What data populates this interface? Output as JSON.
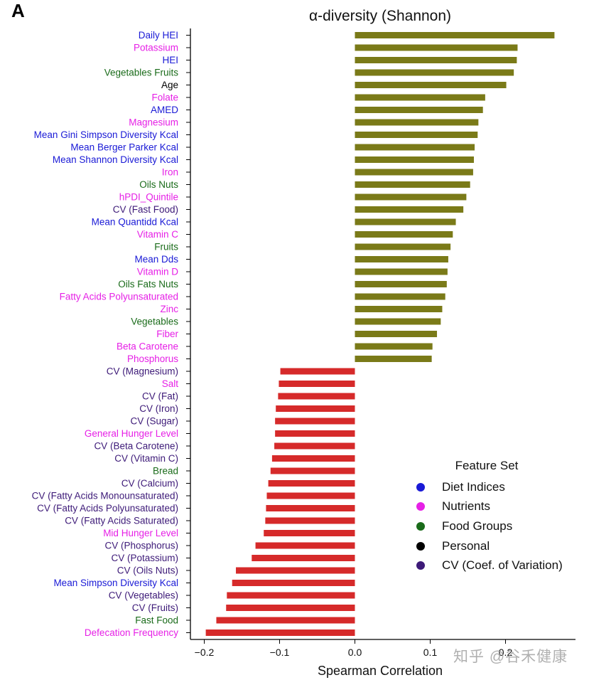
{
  "panel_label": "A",
  "watermark": "知乎 @谷禾健康",
  "legend": {
    "title": "Feature Set",
    "items": [
      {
        "label": "Diet Indices",
        "color": "#1a1ad6"
      },
      {
        "label": "Nutrients",
        "color": "#e620e6"
      },
      {
        "label": "Food Groups",
        "color": "#1a6b1a"
      },
      {
        "label": "Personal",
        "color": "#000000"
      },
      {
        "label": "CV (Coef. of Variation)",
        "color": "#3d1a78"
      }
    ]
  },
  "chart_data": {
    "type": "bar",
    "orientation": "horizontal",
    "title": "α-diversity (Shannon)",
    "xlabel": "Spearman Correlation",
    "ylabel": "",
    "xlim": [
      -0.22,
      0.37
    ],
    "xticks": [
      "−0.2",
      "−0.1",
      "0.0",
      "0.1",
      "0.2"
    ],
    "xtick_values": [
      -0.2,
      -0.1,
      0.0,
      0.1,
      0.2
    ],
    "grid": false,
    "legend_position": "bottom-right",
    "colors": {
      "positive_bar": "#7a7a18",
      "negative_bar": "#d62a2a",
      "Diet Indices": "#1a1ad6",
      "Nutrients": "#e620e6",
      "Food Groups": "#1a6b1a",
      "Personal": "#000000",
      "CV": "#3d1a78"
    },
    "bars": [
      {
        "label": "Daily HEI",
        "value": 0.265,
        "group": "Diet Indices"
      },
      {
        "label": "Potassium",
        "value": 0.216,
        "group": "Nutrients"
      },
      {
        "label": "HEI",
        "value": 0.215,
        "group": "Diet Indices"
      },
      {
        "label": "Vegetables Fruits",
        "value": 0.211,
        "group": "Food Groups"
      },
      {
        "label": "Age",
        "value": 0.201,
        "group": "Personal"
      },
      {
        "label": "Folate",
        "value": 0.173,
        "group": "Nutrients"
      },
      {
        "label": "AMED",
        "value": 0.17,
        "group": "Diet Indices"
      },
      {
        "label": "Magnesium",
        "value": 0.164,
        "group": "Nutrients"
      },
      {
        "label": "Mean Gini Simpson Diversity Kcal",
        "value": 0.163,
        "group": "Diet Indices"
      },
      {
        "label": "Mean Berger Parker Kcal",
        "value": 0.159,
        "group": "Diet Indices"
      },
      {
        "label": "Mean Shannon Diversity Kcal",
        "value": 0.158,
        "group": "Diet Indices"
      },
      {
        "label": "Iron",
        "value": 0.157,
        "group": "Nutrients"
      },
      {
        "label": "Oils Nuts",
        "value": 0.153,
        "group": "Food Groups"
      },
      {
        "label": "hPDI_Quintile",
        "value": 0.148,
        "group": "Nutrients"
      },
      {
        "label": "CV (Fast Food)",
        "value": 0.144,
        "group": "CV"
      },
      {
        "label": "Mean Quantidd Kcal",
        "value": 0.134,
        "group": "Diet Indices"
      },
      {
        "label": "Vitamin C",
        "value": 0.13,
        "group": "Nutrients"
      },
      {
        "label": "Fruits",
        "value": 0.127,
        "group": "Food Groups"
      },
      {
        "label": "Mean Dds",
        "value": 0.124,
        "group": "Diet Indices"
      },
      {
        "label": "Vitamin D",
        "value": 0.123,
        "group": "Nutrients"
      },
      {
        "label": "Oils Fats Nuts",
        "value": 0.122,
        "group": "Food Groups"
      },
      {
        "label": "Fatty Acids Polyunsaturated",
        "value": 0.12,
        "group": "Nutrients"
      },
      {
        "label": "Zinc",
        "value": 0.116,
        "group": "Nutrients"
      },
      {
        "label": "Vegetables",
        "value": 0.114,
        "group": "Food Groups"
      },
      {
        "label": "Fiber",
        "value": 0.109,
        "group": "Nutrients"
      },
      {
        "label": "Beta Carotene",
        "value": 0.103,
        "group": "Nutrients"
      },
      {
        "label": "Phosphorus",
        "value": 0.102,
        "group": "Nutrients"
      },
      {
        "label": "CV (Magnesium)",
        "value": -0.099,
        "group": "CV"
      },
      {
        "label": "Salt",
        "value": -0.101,
        "group": "Nutrients"
      },
      {
        "label": "CV (Fat)",
        "value": -0.102,
        "group": "CV"
      },
      {
        "label": "CV (Iron)",
        "value": -0.105,
        "group": "CV"
      },
      {
        "label": "CV (Sugar)",
        "value": -0.106,
        "group": "CV"
      },
      {
        "label": "General Hunger Level",
        "value": -0.106,
        "group": "Nutrients"
      },
      {
        "label": "CV (Beta Carotene)",
        "value": -0.107,
        "group": "CV"
      },
      {
        "label": "CV (Vitamin C)",
        "value": -0.11,
        "group": "CV"
      },
      {
        "label": "Bread",
        "value": -0.112,
        "group": "Food Groups"
      },
      {
        "label": "CV (Calcium)",
        "value": -0.115,
        "group": "CV"
      },
      {
        "label": "CV (Fatty Acids Monounsaturated)",
        "value": -0.117,
        "group": "CV"
      },
      {
        "label": "CV (Fatty Acids Polyunsaturated)",
        "value": -0.118,
        "group": "CV"
      },
      {
        "label": "CV (Fatty Acids Saturated)",
        "value": -0.119,
        "group": "CV"
      },
      {
        "label": "Mid Hunger Level",
        "value": -0.121,
        "group": "Nutrients"
      },
      {
        "label": "CV (Phosphorus)",
        "value": -0.132,
        "group": "CV"
      },
      {
        "label": "CV (Potassium)",
        "value": -0.137,
        "group": "CV"
      },
      {
        "label": "CV (Oils Nuts)",
        "value": -0.158,
        "group": "CV"
      },
      {
        "label": "Mean Simpson Diversity Kcal",
        "value": -0.163,
        "group": "Diet Indices"
      },
      {
        "label": "CV (Vegetables)",
        "value": -0.17,
        "group": "CV"
      },
      {
        "label": "CV (Fruits)",
        "value": -0.171,
        "group": "CV"
      },
      {
        "label": "Fast Food",
        "value": -0.184,
        "group": "Food Groups"
      },
      {
        "label": "Defecation Frequency",
        "value": -0.198,
        "group": "Nutrients"
      }
    ]
  }
}
